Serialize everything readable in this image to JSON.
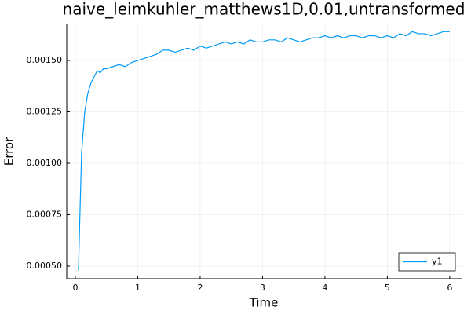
{
  "chart_data": {
    "type": "line",
    "title": "naive_leimkuhler_matthews1D,0.01,untransformed",
    "xlabel": "Time",
    "ylabel": "Error",
    "x": [
      0.05,
      0.1,
      0.15,
      0.2,
      0.25,
      0.3,
      0.35,
      0.4,
      0.45,
      0.5,
      0.6,
      0.7,
      0.8,
      0.9,
      1.0,
      1.1,
      1.2,
      1.3,
      1.4,
      1.5,
      1.6,
      1.7,
      1.8,
      1.9,
      2.0,
      2.1,
      2.2,
      2.3,
      2.4,
      2.5,
      2.6,
      2.7,
      2.8,
      2.9,
      3.0,
      3.1,
      3.2,
      3.3,
      3.4,
      3.5,
      3.6,
      3.7,
      3.8,
      3.9,
      4.0,
      4.1,
      4.2,
      4.3,
      4.4,
      4.5,
      4.6,
      4.7,
      4.8,
      4.9,
      5.0,
      5.1,
      5.2,
      5.3,
      5.4,
      5.5,
      5.6,
      5.7,
      5.8,
      5.9,
      6.0
    ],
    "series": [
      {
        "name": "y1",
        "color": "#009af9",
        "values": [
          0.00048,
          0.00105,
          0.00125,
          0.00134,
          0.00139,
          0.00142,
          0.00145,
          0.00144,
          0.00146,
          0.00146,
          0.00147,
          0.00148,
          0.00147,
          0.00149,
          0.0015,
          0.00151,
          0.00152,
          0.00153,
          0.00155,
          0.00155,
          0.00154,
          0.00155,
          0.00156,
          0.00155,
          0.00157,
          0.00156,
          0.00157,
          0.00158,
          0.00159,
          0.00158,
          0.00159,
          0.00158,
          0.0016,
          0.00159,
          0.00159,
          0.0016,
          0.0016,
          0.00159,
          0.00161,
          0.0016,
          0.00159,
          0.0016,
          0.00161,
          0.00161,
          0.00162,
          0.00161,
          0.00162,
          0.00161,
          0.00162,
          0.00162,
          0.00161,
          0.00162,
          0.00162,
          0.00161,
          0.00162,
          0.00161,
          0.00163,
          0.00162,
          0.00164,
          0.00163,
          0.00163,
          0.00162,
          0.00163,
          0.00164,
          0.00164
        ]
      }
    ],
    "xlim": [
      -0.138,
      6.19
    ],
    "xticks": [
      0,
      1,
      2,
      3,
      4,
      5,
      6
    ],
    "ylim": [
      0.000439,
      0.0016756
    ],
    "yticks": [
      {
        "value": 0.0005,
        "label": "0.00050"
      },
      0.00075,
      {
        "value": 0.001,
        "label": "0.00100"
      },
      0.00125,
      {
        "value": 0.0015,
        "label": "0.00150"
      }
    ],
    "grid": true,
    "legend": "bottom-right"
  }
}
